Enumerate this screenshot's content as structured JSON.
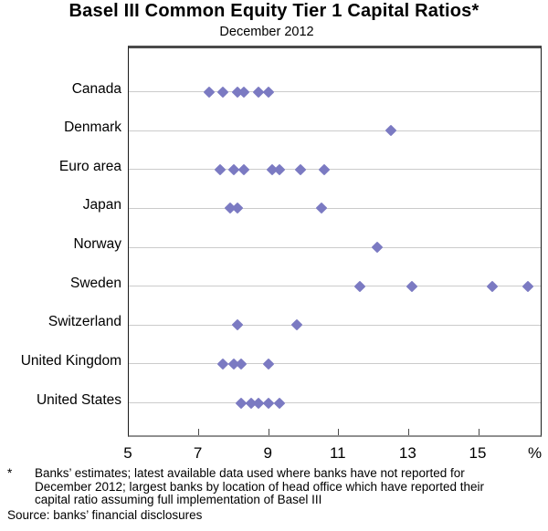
{
  "chart_data": {
    "type": "scatter",
    "variant": "horizontal-dot-plot",
    "title": "Basel III Common Equity Tier 1 Capital Ratios*",
    "subtitle": "December 2012",
    "categories": [
      "Canada",
      "Denmark",
      "Euro area",
      "Japan",
      "Norway",
      "Sweden",
      "Switzerland",
      "United Kingdom",
      "United States"
    ],
    "series": [
      {
        "name": "Canada",
        "values": [
          7.3,
          7.7,
          8.1,
          8.3,
          8.7,
          9.0
        ]
      },
      {
        "name": "Denmark",
        "values": [
          12.5
        ]
      },
      {
        "name": "Euro area",
        "values": [
          7.6,
          8.0,
          8.3,
          9.1,
          9.3,
          9.9,
          10.6
        ]
      },
      {
        "name": "Japan",
        "values": [
          7.9,
          8.1,
          10.5
        ]
      },
      {
        "name": "Norway",
        "values": [
          12.1
        ]
      },
      {
        "name": "Sweden",
        "values": [
          11.6,
          13.1,
          15.4,
          16.4
        ]
      },
      {
        "name": "Switzerland",
        "values": [
          8.1,
          9.8
        ]
      },
      {
        "name": "United Kingdom",
        "values": [
          7.7,
          8.0,
          8.2,
          9.0
        ]
      },
      {
        "name": "United States",
        "values": [
          8.2,
          8.5,
          8.7,
          9.0,
          9.3
        ]
      }
    ],
    "xlim": [
      5,
      16.9
    ],
    "xticks": [
      5,
      7,
      9,
      11,
      13,
      15
    ],
    "x_unit_label": "%",
    "marker": "diamond",
    "marker_color": "#7b7ac2",
    "grid": "horizontal",
    "gridline_color": "#cbcbcb"
  },
  "footnote": {
    "marker": "*",
    "lines": {
      "0": "Banks’ estimates; latest available data used where banks have not reported for",
      "1": "December 2012; largest banks by location of head office which have reported their",
      "2": "capital ratio assuming full implementation of Basel III"
    }
  },
  "source_line": "Source: banks’ financial disclosures"
}
